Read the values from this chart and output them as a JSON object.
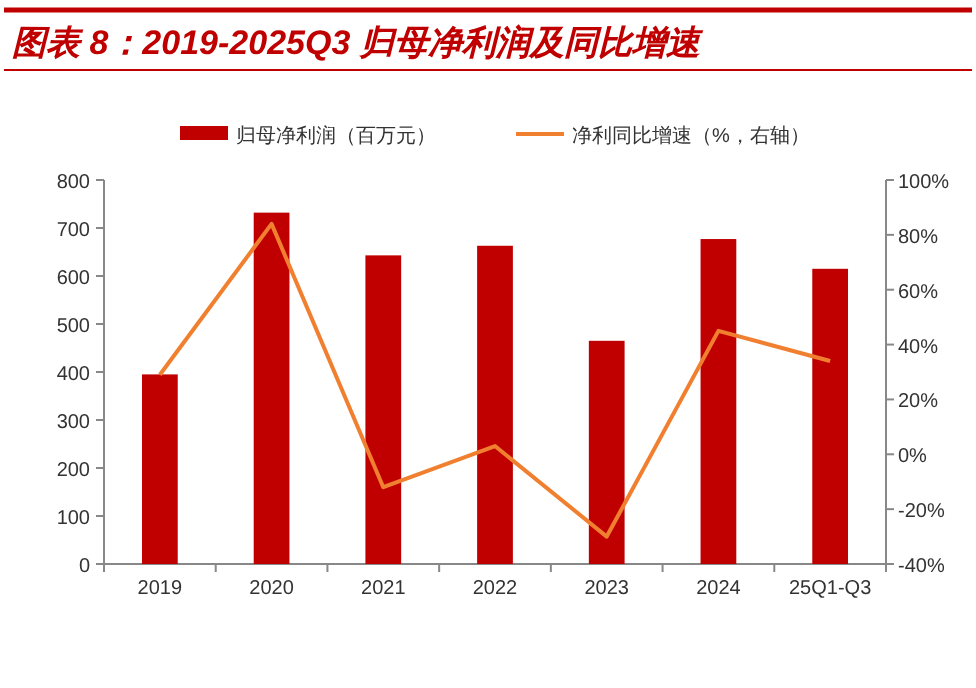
{
  "chart_data": {
    "type": "bar",
    "title": "图表 8：2019-2025Q3 归母净利润及同比增速",
    "categories": [
      "2019",
      "2020",
      "2021",
      "2022",
      "2023",
      "2024",
      "25Q1-Q3"
    ],
    "series": [
      {
        "name": "归母净利润（百万元）",
        "color": "#c00000",
        "values": [
          395,
          732,
          643,
          663,
          465,
          677,
          615
        ]
      },
      {
        "name": "净利同比增速（%，右轴）",
        "type": "line",
        "axis": "y2",
        "color": "#f08030",
        "marker": "none",
        "values": [
          29,
          84,
          -12,
          3,
          -30,
          45,
          34
        ]
      }
    ],
    "ylim": [
      0,
      800
    ],
    "yticks": [
      0,
      100,
      200,
      300,
      400,
      500,
      600,
      700,
      800
    ],
    "y2lim": [
      -40,
      100
    ],
    "y2ticks": [
      {
        "value": -40,
        "label": "-40%"
      },
      {
        "value": -20,
        "label": "-20%"
      },
      {
        "value": 0,
        "label": "0%"
      },
      {
        "value": 20,
        "label": "20%"
      },
      {
        "value": 40,
        "label": "40%"
      },
      {
        "value": 60,
        "label": "60%"
      },
      {
        "value": 80,
        "label": "80%"
      },
      {
        "value": 100,
        "label": "100%"
      }
    ],
    "grid": false,
    "legend": "top"
  }
}
